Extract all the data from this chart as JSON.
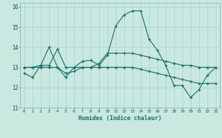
{
  "title": "",
  "xlabel": "Humidex (Indice chaleur)",
  "bg_color": "#c8e8e0",
  "line_color": "#1a7068",
  "grid_color": "#b0d8d0",
  "x_values": [
    0,
    1,
    2,
    3,
    4,
    5,
    6,
    7,
    8,
    9,
    10,
    11,
    12,
    13,
    14,
    15,
    16,
    17,
    18,
    19,
    20,
    21,
    22,
    23
  ],
  "series1": [
    12.7,
    12.5,
    13.1,
    13.1,
    13.9,
    13.0,
    13.0,
    13.3,
    13.35,
    13.1,
    13.6,
    15.05,
    15.6,
    15.8,
    15.8,
    14.4,
    13.85,
    13.1,
    12.1,
    12.1,
    11.5,
    11.9,
    12.6,
    13.0
  ],
  "series2": [
    13.0,
    13.0,
    13.1,
    14.0,
    13.0,
    12.5,
    13.0,
    13.0,
    13.0,
    13.2,
    13.7,
    13.7,
    13.7,
    13.7,
    13.6,
    13.5,
    13.4,
    13.3,
    13.2,
    13.1,
    13.1,
    13.0,
    13.0,
    13.0
  ],
  "series3": [
    13.0,
    13.0,
    13.0,
    13.0,
    13.0,
    12.7,
    12.8,
    13.0,
    13.0,
    13.0,
    13.0,
    13.0,
    13.0,
    13.0,
    12.9,
    12.8,
    12.7,
    12.6,
    12.5,
    12.4,
    12.3,
    12.2,
    12.2,
    12.2
  ],
  "ylim": [
    11,
    16.2
  ],
  "xlim": [
    -0.5,
    23.5
  ],
  "yticks": [
    11,
    12,
    13,
    14,
    15,
    16
  ],
  "xticks": [
    0,
    1,
    2,
    3,
    4,
    5,
    6,
    7,
    8,
    9,
    10,
    11,
    12,
    13,
    14,
    15,
    16,
    17,
    18,
    19,
    20,
    21,
    22,
    23
  ]
}
